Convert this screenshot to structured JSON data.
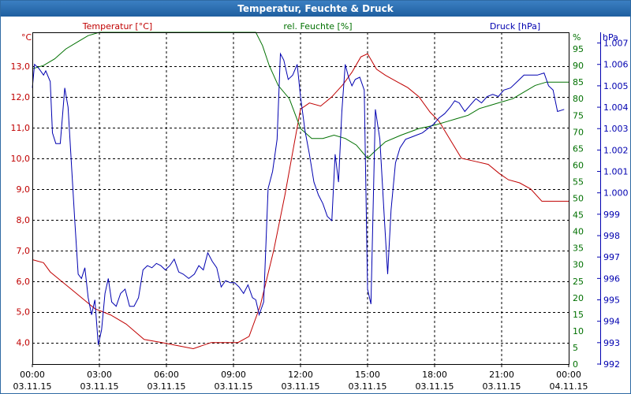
{
  "window": {
    "title": "Temperatur, Feuchte & Druck"
  },
  "colors": {
    "temperature": "#c00000",
    "humidity": "#007000",
    "pressure": "#0000b0",
    "grid": "#000000"
  },
  "chart_data": {
    "type": "line",
    "title": "Temperatur, Feuchte & Druck",
    "grid": true,
    "x_ticks": [
      {
        "time": "00:00",
        "date": "03.11.15"
      },
      {
        "time": "03:00",
        "date": "03.11.15"
      },
      {
        "time": "06:00",
        "date": "03.11.15"
      },
      {
        "time": "09:00",
        "date": "03.11.15"
      },
      {
        "time": "12:00",
        "date": "03.11.15"
      },
      {
        "time": "15:00",
        "date": "03.11.15"
      },
      {
        "time": "18:00",
        "date": "03.11.15"
      },
      {
        "time": "21:00",
        "date": "03.11.15"
      },
      {
        "time": "00:00",
        "date": "04.11.15"
      }
    ],
    "axes": {
      "temperature": {
        "label": "Temperatur [°C]",
        "unit": "°C",
        "range": [
          3.3,
          14.1
        ],
        "ticks": [
          "4,0",
          "5,0",
          "6,0",
          "7,0",
          "8,0",
          "9,0",
          "10,0",
          "11,0",
          "12,0",
          "13,0"
        ]
      },
      "humidity": {
        "label": "rel. Feuchte [%]",
        "unit": "%",
        "range": [
          0,
          100
        ],
        "ticks": [
          "0",
          "5",
          "10",
          "15",
          "20",
          "25",
          "30",
          "35",
          "40",
          "45",
          "50",
          "55",
          "60",
          "65",
          "70",
          "75",
          "80",
          "85",
          "90",
          "95"
        ]
      },
      "pressure": {
        "label": "Druck [hPa]",
        "unit": "hPa",
        "range": [
          992,
          1007.5
        ],
        "ticks": [
          "992",
          "993",
          "994",
          "995",
          "996",
          "997",
          "998",
          "999",
          "1.000",
          "1.001",
          "1.002",
          "1.003",
          "1.004",
          "1.005",
          "1.006",
          "1.007"
        ]
      }
    },
    "series": [
      {
        "name": "Temperatur [°C]",
        "axis": "temperature",
        "color": "#c00000",
        "points": [
          [
            0,
            6.7
          ],
          [
            0.5,
            6.6
          ],
          [
            0.8,
            6.3
          ],
          [
            1.3,
            6.0
          ],
          [
            1.8,
            5.7
          ],
          [
            2.3,
            5.4
          ],
          [
            2.8,
            5.1
          ],
          [
            3.5,
            4.9
          ],
          [
            4.2,
            4.6
          ],
          [
            5.0,
            4.1
          ],
          [
            5.8,
            4.0
          ],
          [
            6.5,
            3.9
          ],
          [
            7.2,
            3.8
          ],
          [
            8.0,
            4.0
          ],
          [
            8.7,
            4.0
          ],
          [
            9.2,
            4.0
          ],
          [
            9.7,
            4.2
          ],
          [
            10.2,
            5.2
          ],
          [
            10.8,
            7.0
          ],
          [
            11.3,
            8.8
          ],
          [
            11.7,
            10.4
          ],
          [
            12.0,
            11.6
          ],
          [
            12.4,
            11.8
          ],
          [
            12.9,
            11.7
          ],
          [
            13.4,
            12.0
          ],
          [
            13.9,
            12.4
          ],
          [
            14.3,
            12.8
          ],
          [
            14.7,
            13.3
          ],
          [
            15.0,
            13.4
          ],
          [
            15.4,
            12.9
          ],
          [
            15.8,
            12.7
          ],
          [
            16.3,
            12.5
          ],
          [
            16.8,
            12.3
          ],
          [
            17.3,
            12.0
          ],
          [
            17.8,
            11.5
          ],
          [
            18.2,
            11.2
          ],
          [
            18.7,
            10.6
          ],
          [
            19.2,
            10.0
          ],
          [
            19.8,
            9.9
          ],
          [
            20.4,
            9.8
          ],
          [
            20.9,
            9.5
          ],
          [
            21.3,
            9.3
          ],
          [
            21.8,
            9.2
          ],
          [
            22.3,
            9.0
          ],
          [
            22.8,
            8.6
          ],
          [
            23.3,
            8.6
          ],
          [
            24.0,
            8.6
          ]
        ]
      },
      {
        "name": "rel. Feuchte [%]",
        "axis": "humidity",
        "color": "#007000",
        "points": [
          [
            0,
            89
          ],
          [
            0.5,
            90
          ],
          [
            1.0,
            92
          ],
          [
            1.5,
            95
          ],
          [
            2.0,
            97
          ],
          [
            2.5,
            99
          ],
          [
            3.0,
            100
          ],
          [
            6.0,
            100
          ],
          [
            9.0,
            100
          ],
          [
            10.0,
            100
          ],
          [
            10.3,
            96
          ],
          [
            10.6,
            90
          ],
          [
            11.0,
            84
          ],
          [
            11.5,
            80
          ],
          [
            12.0,
            71
          ],
          [
            12.5,
            68
          ],
          [
            13.0,
            68
          ],
          [
            13.5,
            69
          ],
          [
            14.0,
            68
          ],
          [
            14.5,
            66
          ],
          [
            15.0,
            62
          ],
          [
            15.3,
            64
          ],
          [
            15.8,
            67
          ],
          [
            16.5,
            69
          ],
          [
            17.3,
            71
          ],
          [
            18.0,
            72
          ],
          [
            18.5,
            73
          ],
          [
            19.0,
            74
          ],
          [
            19.5,
            75
          ],
          [
            20.0,
            77
          ],
          [
            20.5,
            78
          ],
          [
            21.0,
            79
          ],
          [
            21.5,
            80
          ],
          [
            22.0,
            82
          ],
          [
            22.5,
            84
          ],
          [
            23.0,
            85
          ],
          [
            23.5,
            85
          ],
          [
            24.0,
            85
          ]
        ]
      },
      {
        "name": "Druck [hPa]",
        "axis": "pressure",
        "color": "#0000b0",
        "points": [
          [
            0,
            1004.9
          ],
          [
            0.1,
            1006.0
          ],
          [
            0.3,
            1005.8
          ],
          [
            0.5,
            1005.5
          ],
          [
            0.6,
            1005.7
          ],
          [
            0.8,
            1005.2
          ],
          [
            0.9,
            1002.8
          ],
          [
            1.05,
            1002.3
          ],
          [
            1.25,
            1002.3
          ],
          [
            1.45,
            1004.9
          ],
          [
            1.6,
            1004.0
          ],
          [
            1.9,
            998.7
          ],
          [
            2.05,
            996.2
          ],
          [
            2.2,
            996.0
          ],
          [
            2.35,
            996.5
          ],
          [
            2.5,
            995.1
          ],
          [
            2.65,
            994.3
          ],
          [
            2.8,
            995.0
          ],
          [
            2.95,
            992.9
          ],
          [
            3.1,
            993.6
          ],
          [
            3.25,
            995.3
          ],
          [
            3.4,
            996.0
          ],
          [
            3.55,
            994.9
          ],
          [
            3.75,
            994.7
          ],
          [
            3.95,
            995.3
          ],
          [
            4.15,
            995.5
          ],
          [
            4.35,
            994.7
          ],
          [
            4.55,
            994.7
          ],
          [
            4.75,
            995.1
          ],
          [
            4.95,
            996.4
          ],
          [
            5.15,
            996.6
          ],
          [
            5.35,
            996.5
          ],
          [
            5.55,
            996.7
          ],
          [
            5.75,
            996.6
          ],
          [
            5.95,
            996.4
          ],
          [
            6.15,
            996.6
          ],
          [
            6.35,
            996.9
          ],
          [
            6.55,
            996.3
          ],
          [
            6.75,
            996.2
          ],
          [
            7.0,
            996.0
          ],
          [
            7.25,
            996.2
          ],
          [
            7.45,
            996.6
          ],
          [
            7.65,
            996.4
          ],
          [
            7.85,
            997.2
          ],
          [
            8.05,
            996.8
          ],
          [
            8.25,
            996.5
          ],
          [
            8.45,
            995.6
          ],
          [
            8.65,
            995.9
          ],
          [
            8.85,
            995.8
          ],
          [
            9.05,
            995.8
          ],
          [
            9.25,
            995.6
          ],
          [
            9.45,
            995.3
          ],
          [
            9.65,
            995.7
          ],
          [
            9.85,
            995.1
          ],
          [
            10.0,
            995.0
          ],
          [
            10.15,
            994.3
          ],
          [
            10.35,
            994.9
          ],
          [
            10.55,
            1000.2
          ],
          [
            10.75,
            1001.0
          ],
          [
            10.95,
            1002.5
          ],
          [
            11.1,
            1006.5
          ],
          [
            11.25,
            1006.2
          ],
          [
            11.45,
            1005.3
          ],
          [
            11.65,
            1005.5
          ],
          [
            11.85,
            1006.0
          ],
          [
            12.0,
            1004.5
          ],
          [
            12.2,
            1002.9
          ],
          [
            12.4,
            1001.8
          ],
          [
            12.6,
            1000.5
          ],
          [
            12.8,
            999.9
          ],
          [
            13.0,
            999.5
          ],
          [
            13.2,
            998.9
          ],
          [
            13.4,
            998.7
          ],
          [
            13.55,
            1001.8
          ],
          [
            13.7,
            1000.5
          ],
          [
            13.85,
            1003.8
          ],
          [
            14.0,
            1006.0
          ],
          [
            14.15,
            1005.4
          ],
          [
            14.3,
            1005.0
          ],
          [
            14.45,
            1005.3
          ],
          [
            14.65,
            1005.4
          ],
          [
            14.85,
            1004.8
          ],
          [
            15.0,
            995.5
          ],
          [
            15.15,
            994.8
          ],
          [
            15.35,
            1003.9
          ],
          [
            15.55,
            1002.5
          ],
          [
            15.75,
            998.8
          ],
          [
            15.9,
            996.2
          ],
          [
            16.05,
            999.2
          ],
          [
            16.25,
            1001.4
          ],
          [
            16.45,
            1002.1
          ],
          [
            16.7,
            1002.5
          ],
          [
            16.95,
            1002.6
          ],
          [
            17.2,
            1002.7
          ],
          [
            17.45,
            1002.8
          ],
          [
            17.7,
            1003.0
          ],
          [
            17.95,
            1003.2
          ],
          [
            18.2,
            1003.5
          ],
          [
            18.45,
            1003.7
          ],
          [
            18.7,
            1004.0
          ],
          [
            18.9,
            1004.3
          ],
          [
            19.1,
            1004.2
          ],
          [
            19.35,
            1003.8
          ],
          [
            19.6,
            1004.1
          ],
          [
            19.85,
            1004.4
          ],
          [
            20.1,
            1004.2
          ],
          [
            20.35,
            1004.5
          ],
          [
            20.6,
            1004.6
          ],
          [
            20.85,
            1004.5
          ],
          [
            21.1,
            1004.8
          ],
          [
            21.4,
            1004.9
          ],
          [
            21.7,
            1005.2
          ],
          [
            22.0,
            1005.5
          ],
          [
            22.3,
            1005.5
          ],
          [
            22.6,
            1005.5
          ],
          [
            22.9,
            1005.6
          ],
          [
            23.1,
            1005.0
          ],
          [
            23.3,
            1004.8
          ],
          [
            23.5,
            1003.8
          ],
          [
            23.8,
            1003.9
          ]
        ]
      }
    ]
  }
}
